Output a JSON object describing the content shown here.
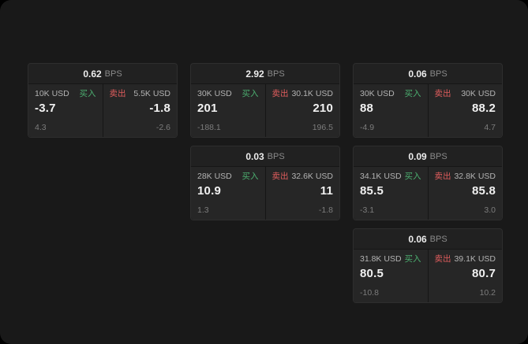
{
  "labels": {
    "bps": "BPS",
    "buy": "买入",
    "sell": "卖出"
  },
  "colors": {
    "background": "#191919",
    "card": "#232323",
    "buy_green": "#4caf70",
    "sell_red": "#e05d5d"
  },
  "cards": [
    {
      "bps": "0.62",
      "buy": {
        "amount": "10K USD",
        "main": "-3.7",
        "sub": "4.3"
      },
      "sell": {
        "amount": "5.5K USD",
        "main": "-1.8",
        "sub": "-2.6"
      }
    },
    {
      "bps": "2.92",
      "buy": {
        "amount": "30K USD",
        "main": "201",
        "sub": "-188.1"
      },
      "sell": {
        "amount": "30.1K USD",
        "main": "210",
        "sub": "196.5"
      }
    },
    {
      "bps": "0.06",
      "buy": {
        "amount": "30K USD",
        "main": "88",
        "sub": "-4.9"
      },
      "sell": {
        "amount": "30K USD",
        "main": "88.2",
        "sub": "4.7"
      }
    },
    {
      "bps": "0.03",
      "buy": {
        "amount": "28K USD",
        "main": "10.9",
        "sub": "1.3"
      },
      "sell": {
        "amount": "32.6K USD",
        "main": "11",
        "sub": "-1.8"
      }
    },
    {
      "bps": "0.09",
      "buy": {
        "amount": "34.1K USD",
        "main": "85.5",
        "sub": "-3.1"
      },
      "sell": {
        "amount": "32.8K USD",
        "main": "85.8",
        "sub": "3.0"
      }
    },
    {
      "bps": "0.06",
      "buy": {
        "amount": "31.8K USD",
        "main": "80.5",
        "sub": "-10.8"
      },
      "sell": {
        "amount": "39.1K USD",
        "main": "80.7",
        "sub": "10.2"
      }
    }
  ]
}
